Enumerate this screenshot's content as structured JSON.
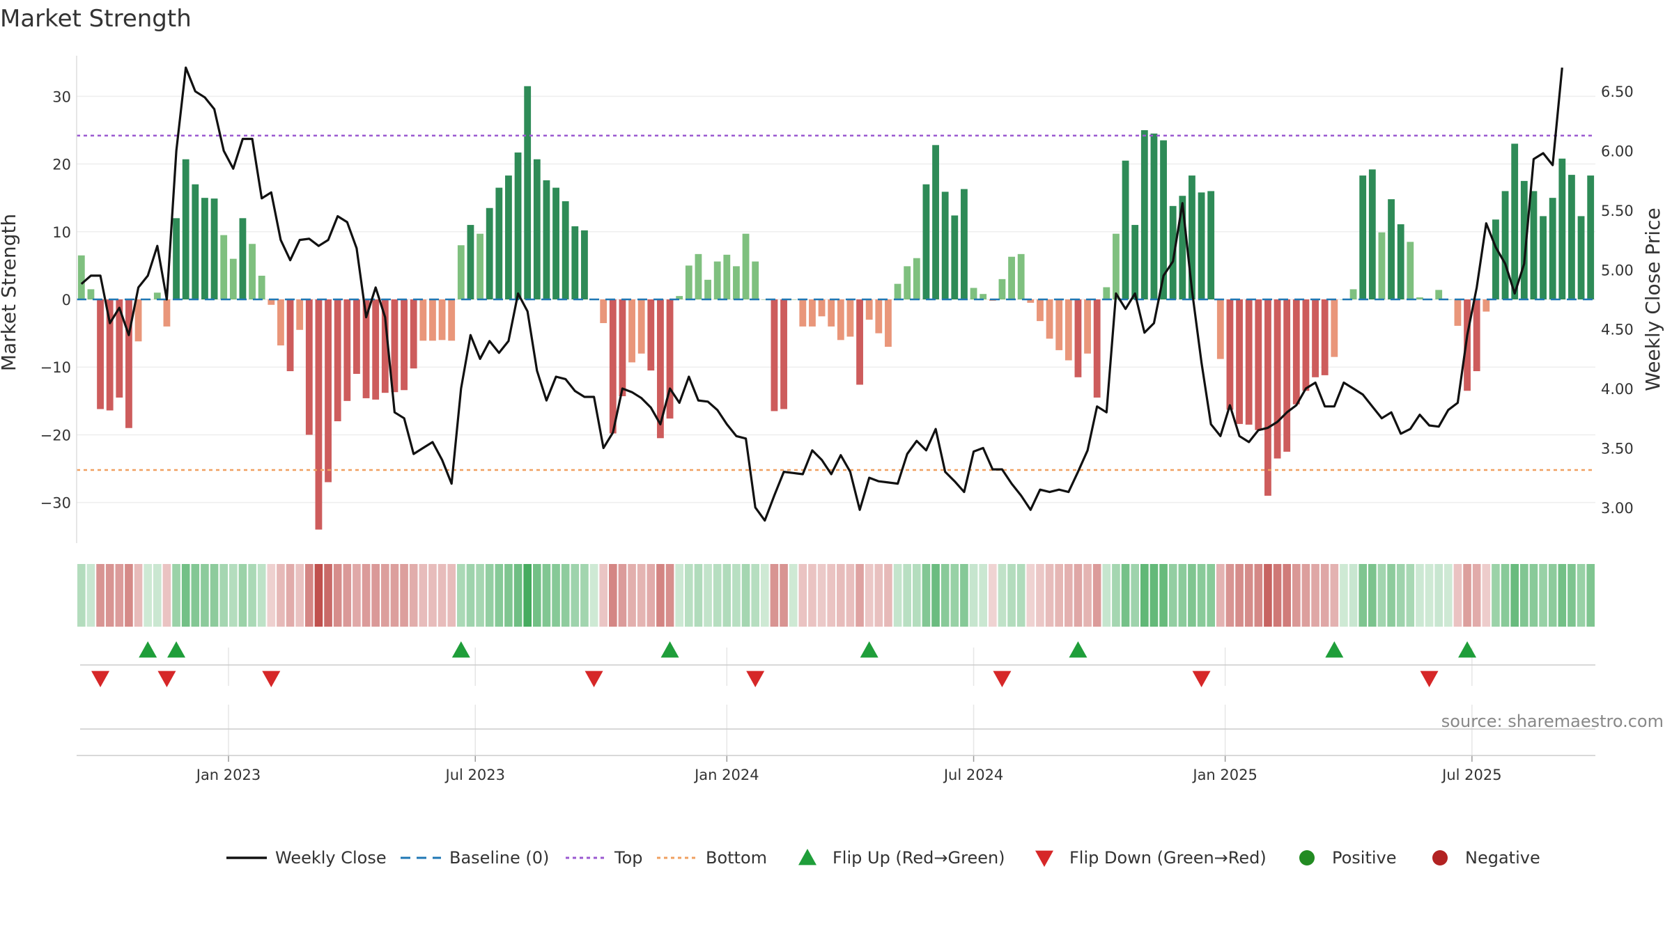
{
  "chart_data": {
    "type": "bar",
    "title": "Market Strength",
    "ylabel_left": "Market Strength",
    "ylabel_right": "Weekly Close Price",
    "ylim_left": [
      -36,
      36
    ],
    "ylim_right": [
      2.7,
      6.8
    ],
    "yticks_left": [
      30,
      20,
      10,
      0,
      -10,
      -20,
      -30
    ],
    "yticks_left_labels": [
      "30",
      "20",
      "10",
      "0",
      "−10",
      "−20",
      "−30"
    ],
    "yticks_right": [
      6.5,
      6.0,
      5.5,
      5.0,
      4.5,
      4.0,
      3.5,
      3.0
    ],
    "yticks_right_labels": [
      "6.50",
      "6.00",
      "5.50",
      "5.00",
      "4.50",
      "4.00",
      "3.50",
      "3.00"
    ],
    "x_start_week": 0,
    "x_end_week": 158,
    "xticks": [
      {
        "label": "Jan 2023",
        "week": 15.5
      },
      {
        "label": "Jul 2023",
        "week": 41.5
      },
      {
        "label": "Jan 2024",
        "week": 68
      },
      {
        "label": "Jul 2024",
        "week": 94
      },
      {
        "label": "Jan 2025",
        "week": 120.5
      },
      {
        "label": "Jul 2025",
        "week": 146.5
      }
    ],
    "top_level": 24.2,
    "bottom_level": -25.2,
    "strength": [
      6.5,
      1.5,
      -16.2,
      -16.4,
      -14.5,
      -19,
      -6.2,
      0,
      1,
      -4,
      12,
      20.7,
      17,
      15,
      14.9,
      9.5,
      6,
      12,
      8.2,
      3.5,
      -0.8,
      -6.8,
      -10.6,
      -4.5,
      -20,
      -34,
      -27,
      -18,
      -15,
      -11,
      -14.6,
      -14.8,
      -13.8,
      -13.7,
      -13.4,
      -10.2,
      -6.1,
      -6.1,
      -6,
      -6.1,
      8,
      11,
      9.7,
      13.5,
      16.5,
      18.3,
      21.7,
      31.5,
      20.7,
      17.6,
      16.5,
      14.5,
      10.8,
      10.2,
      0,
      -3.5,
      -19.8,
      -14.3,
      -9.3,
      -8,
      -10.5,
      -20.5,
      -17.6,
      0.5,
      5,
      6.7,
      2.9,
      5.6,
      6.6,
      4.9,
      9.7,
      5.6,
      0,
      -16.5,
      -16.2,
      0,
      -4,
      -4,
      -2.5,
      -4,
      -6,
      -5.5,
      -12.6,
      -3,
      -5,
      -7,
      2.3,
      4.9,
      6.1,
      17,
      22.8,
      15.9,
      12.4,
      16.3,
      1.7,
      0.8,
      -0.2,
      3,
      6.3,
      6.7,
      -0.5,
      -3.2,
      -5.8,
      -7.5,
      -9,
      -11.5,
      -8,
      -14.5,
      1.8,
      9.7,
      20.5,
      11,
      25,
      24.5,
      23.5,
      13.8,
      15.3,
      18.3,
      15.8,
      16,
      -8.8,
      -16.3,
      -18.4,
      -18.5,
      -19.3,
      -29,
      -23.5,
      -22.5,
      -15.5,
      -13.5,
      -11.5,
      -11.2,
      -8.5,
      0,
      1.5,
      18.3,
      19.2,
      9.9,
      14.8,
      11.1,
      8.5,
      0.3,
      0,
      1.4,
      0,
      -3.9,
      -13.5,
      -10.6,
      -1.8,
      11.8,
      16,
      23,
      17.5,
      16,
      12.3,
      15,
      20.8,
      18.4,
      12.3,
      18.3
    ],
    "close": [
      4.88,
      4.95,
      4.95,
      4.55,
      4.68,
      4.45,
      4.85,
      4.95,
      5.2,
      4.75,
      6.0,
      6.7,
      6.5,
      6.45,
      6.35,
      6.0,
      5.85,
      6.1,
      6.1,
      5.6,
      5.65,
      5.25,
      5.08,
      5.25,
      5.26,
      5.2,
      5.25,
      5.45,
      5.4,
      5.18,
      4.6,
      4.85,
      4.6,
      3.8,
      3.75,
      3.45,
      3.5,
      3.55,
      3.4,
      3.2,
      4.0,
      4.45,
      4.25,
      4.4,
      4.3,
      4.4,
      4.8,
      4.65,
      4.15,
      3.9,
      4.1,
      4.08,
      3.98,
      3.93,
      3.93,
      3.5,
      3.63,
      4.0,
      3.97,
      3.92,
      3.84,
      3.7,
      4.0,
      3.88,
      4.1,
      3.9,
      3.89,
      3.82,
      3.7,
      3.6,
      3.58,
      3.0,
      2.89,
      3.1,
      3.3,
      3.29,
      3.28,
      3.48,
      3.4,
      3.28,
      3.44,
      3.3,
      2.98,
      3.25,
      3.22,
      3.21,
      3.2,
      3.45,
      3.56,
      3.48,
      3.66,
      3.3,
      3.22,
      3.13,
      3.47,
      3.5,
      3.32,
      3.32,
      3.2,
      3.1,
      2.98,
      3.15,
      3.13,
      3.15,
      3.13,
      3.3,
      3.48,
      3.85,
      3.8,
      4.8,
      4.67,
      4.8,
      4.47,
      4.55,
      4.95,
      5.07,
      5.56,
      4.83,
      4.22,
      3.7,
      3.6,
      3.86,
      3.6,
      3.55,
      3.65,
      3.67,
      3.72,
      3.8,
      3.86,
      4.0,
      4.05,
      3.85,
      3.85,
      4.05,
      4.0,
      3.95,
      3.85,
      3.75,
      3.8,
      3.62,
      3.66,
      3.78,
      3.69,
      3.68,
      3.82,
      3.88,
      4.45,
      4.85,
      5.39,
      5.19,
      5.05,
      4.8,
      5.05,
      5.93,
      5.98,
      5.88,
      6.7
    ],
    "flip_up_weeks": [
      7,
      10,
      40,
      62,
      83,
      105,
      132,
      146
    ],
    "flip_down_weeks": [
      2,
      9,
      20,
      54,
      71,
      97,
      118,
      142
    ],
    "legend": [
      "Weekly Close",
      "Baseline (0)",
      "Top",
      "Bottom",
      "Flip Up (Red→Green)",
      "Flip Down (Green→Red)",
      "Positive",
      "Negative"
    ],
    "colors": {
      "pos_strong": "#2e8b57",
      "pos_light": "#7fc07f",
      "neg_strong": "#cd5c5c",
      "neg_light": "#e9967a",
      "line": "#111111",
      "baseline": "#1f77b4",
      "top": "#9b59d0",
      "bottom": "#f0a060",
      "flip_up": "#1f9e3a",
      "flip_down": "#d62728",
      "positive_dot": "#228b22",
      "negative_dot": "#b22222"
    },
    "source": "source: sharemaestro.com"
  }
}
